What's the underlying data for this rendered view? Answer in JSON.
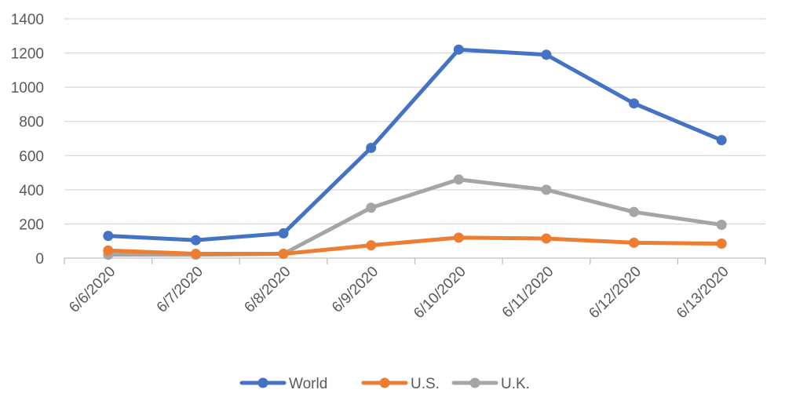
{
  "chart_data": {
    "type": "line",
    "title": "",
    "xlabel": "",
    "ylabel": "",
    "categories": [
      "6/6/2020",
      "6/7/2020",
      "6/8/2020",
      "6/9/2020",
      "6/10/2020",
      "6/11/2020",
      "6/12/2020",
      "6/13/2020"
    ],
    "ylim": [
      0,
      1400
    ],
    "yticks": [
      0,
      200,
      400,
      600,
      800,
      1000,
      1200,
      1400
    ],
    "grid": true,
    "legend": "bottom",
    "series": [
      {
        "name": "World",
        "color": "#4472c4",
        "values": [
          130,
          105,
          145,
          645,
          1220,
          1190,
          905,
          690
        ]
      },
      {
        "name": "U.S.",
        "color": "#ed7d31",
        "values": [
          45,
          25,
          25,
          75,
          120,
          115,
          90,
          85
        ]
      },
      {
        "name": "U.K.",
        "color": "#a5a5a5",
        "values": [
          20,
          20,
          25,
          295,
          460,
          400,
          270,
          195
        ]
      }
    ]
  }
}
